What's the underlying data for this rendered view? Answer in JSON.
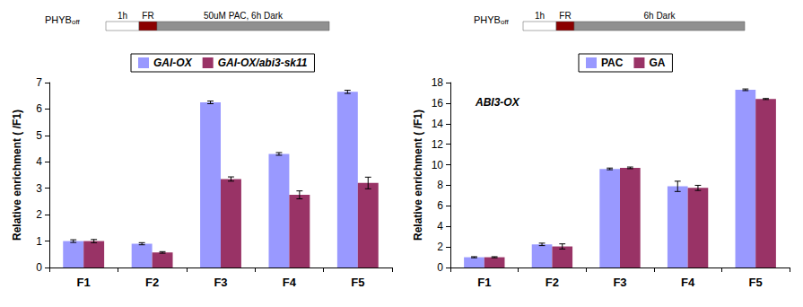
{
  "chart_data": [
    {
      "type": "bar",
      "annotations": {
        "label": "PHYB",
        "label_subscript": "off",
        "steps": [
          "1h",
          "FR",
          "50uM PAC, 6h Dark"
        ]
      },
      "y_label": "Relative enrichment ( /F1)",
      "categories": [
        "F1",
        "F2",
        "F3",
        "F4",
        "F5"
      ],
      "series": [
        {
          "name": "GAI-OX",
          "color": "#9999ff",
          "values": [
            1.0,
            0.9,
            6.25,
            4.3,
            6.65
          ],
          "errors": [
            0.05,
            0.04,
            0.05,
            0.05,
            0.06
          ]
        },
        {
          "name": "GAI-OX/abi3-sk11",
          "color": "#993366",
          "values": [
            1.0,
            0.57,
            3.35,
            2.75,
            3.2
          ],
          "errors": [
            0.06,
            0.03,
            0.08,
            0.15,
            0.22
          ]
        }
      ],
      "ylim": [
        0,
        7
      ],
      "yticks": [
        0,
        1,
        2,
        3,
        4,
        5,
        6,
        7
      ],
      "grid": false,
      "legend": "top"
    },
    {
      "type": "bar",
      "annotations": {
        "label": "PHYB",
        "label_subscript": "off",
        "steps": [
          "1h",
          "FR",
          "6h Dark"
        ],
        "inset": "ABI3-OX"
      },
      "y_label": "Relative enrichment ( /F1)",
      "categories": [
        "F1",
        "F2",
        "F3",
        "F4",
        "F5"
      ],
      "series": [
        {
          "name": "PAC",
          "color": "#9999ff",
          "values": [
            1.0,
            2.25,
            9.6,
            7.9,
            17.3
          ],
          "errors": [
            0.05,
            0.12,
            0.08,
            0.5,
            0.08
          ]
        },
        {
          "name": "GA",
          "color": "#993366",
          "values": [
            1.0,
            2.05,
            9.7,
            7.75,
            16.4
          ],
          "errors": [
            0.05,
            0.25,
            0.08,
            0.25,
            0.05
          ]
        }
      ],
      "ylim": [
        0,
        18
      ],
      "yticks": [
        0,
        2,
        4,
        6,
        8,
        10,
        12,
        14,
        16,
        18
      ],
      "grid": false,
      "legend": "top"
    }
  ]
}
